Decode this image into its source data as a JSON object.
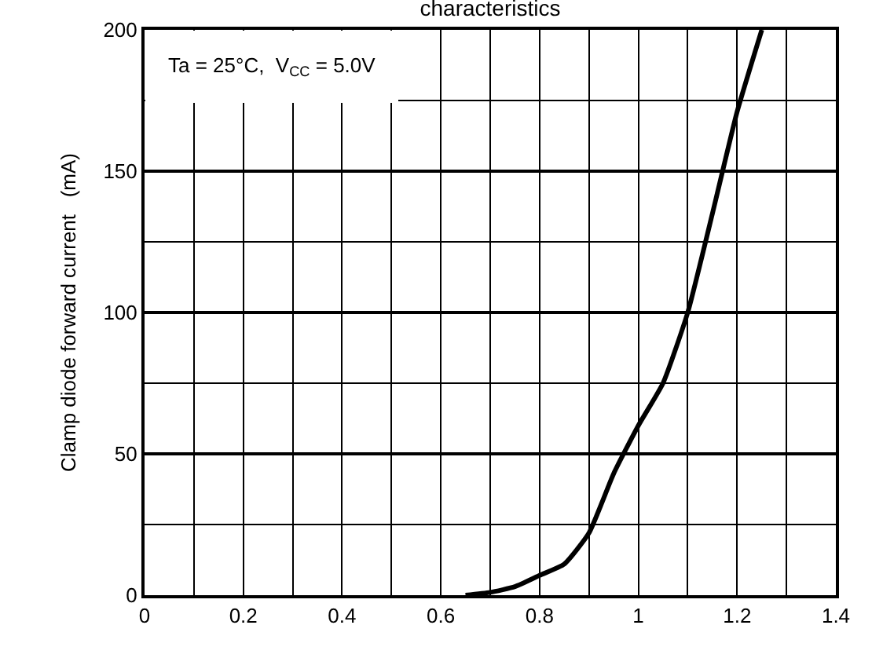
{
  "chart_data": {
    "type": "line",
    "title": "characteristics",
    "ylabel": "Clamp diode forward current   (mA)",
    "annotations": [
      "Ta = 25°C,  V$_{CC}$ = 5.0V"
    ],
    "x": [
      0.65,
      0.7,
      0.75,
      0.8,
      0.85,
      0.9,
      0.95,
      1.0,
      1.05,
      1.1,
      1.15,
      1.2,
      1.25
    ],
    "series": [
      {
        "color": "#000000",
        "values": [
          0,
          1,
          3,
          7,
          11,
          22,
          43,
          60,
          75,
          100,
          135,
          171,
          200
        ]
      }
    ],
    "xlim": [
      0,
      1.4
    ],
    "xticks": [
      0,
      0.2,
      0.4,
      0.6,
      0.8,
      1,
      1.2,
      1.4
    ],
    "ylim": [
      0,
      200
    ],
    "yticks": [
      0,
      50,
      100,
      150,
      200
    ],
    "grid": true,
    "marker": "none",
    "line_style": "solid"
  }
}
